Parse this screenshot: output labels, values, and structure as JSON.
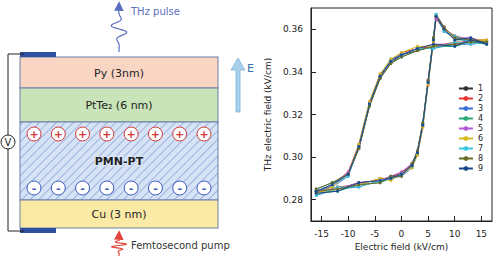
{
  "diagram": {
    "pulse_top": "THz pulse",
    "pulse_bottom": "Femtosecond pump",
    "field": "E",
    "source": "V",
    "layers": [
      "Py (3nm)",
      "PtTe₂ (6 nm)",
      "PMN-PT",
      "Cu (3 nm)"
    ],
    "charges": {
      "top": "+",
      "bottom": "-",
      "count": 8
    }
  },
  "chart_data": {
    "type": "line",
    "xlabel": "Electric field (kV/cm)",
    "ylabel": "THz electric field (kV/cm)",
    "x": [
      -16,
      -12,
      -8,
      -4,
      -2,
      0,
      2,
      3,
      4,
      5,
      6,
      6.5,
      8,
      10,
      13,
      16,
      13,
      10,
      6,
      3,
      0,
      -2,
      -4,
      -6,
      -8,
      -10,
      -13,
      -16
    ],
    "series": [
      {
        "name": "1",
        "color": "#333333",
        "values": [
          0.284,
          0.285,
          0.288,
          0.289,
          0.291,
          0.292,
          0.297,
          0.303,
          0.316,
          0.336,
          0.356,
          0.367,
          0.361,
          0.356,
          0.355,
          0.354,
          0.354,
          0.353,
          0.352,
          0.35,
          0.348,
          0.344,
          0.337,
          0.324,
          0.304,
          0.292,
          0.287,
          0.284
        ]
      },
      {
        "name": "2",
        "color": "#e8322c",
        "values": [
          0.283,
          0.286,
          0.287,
          0.29,
          0.29,
          0.293,
          0.296,
          0.301,
          0.314,
          0.334,
          0.354,
          0.365,
          0.36,
          0.357,
          0.355,
          0.355,
          0.354,
          0.354,
          0.352,
          0.351,
          0.349,
          0.345,
          0.339,
          0.326,
          0.306,
          0.293,
          0.287,
          0.283
        ]
      },
      {
        "name": "3",
        "color": "#3a6fd8",
        "values": [
          0.282,
          0.285,
          0.286,
          0.289,
          0.29,
          0.291,
          0.295,
          0.302,
          0.315,
          0.335,
          0.355,
          0.366,
          0.359,
          0.356,
          0.354,
          0.354,
          0.353,
          0.353,
          0.351,
          0.351,
          0.348,
          0.346,
          0.338,
          0.325,
          0.305,
          0.291,
          0.286,
          0.284
        ]
      },
      {
        "name": "4",
        "color": "#2aa876",
        "values": [
          0.283,
          0.284,
          0.287,
          0.288,
          0.29,
          0.292,
          0.296,
          0.302,
          0.316,
          0.335,
          0.356,
          0.366,
          0.36,
          0.355,
          0.355,
          0.353,
          0.354,
          0.352,
          0.352,
          0.35,
          0.347,
          0.344,
          0.338,
          0.324,
          0.305,
          0.292,
          0.288,
          0.285
        ]
      },
      {
        "name": "5",
        "color": "#b45ad2",
        "values": [
          0.284,
          0.285,
          0.288,
          0.289,
          0.291,
          0.293,
          0.297,
          0.303,
          0.315,
          0.336,
          0.355,
          0.365,
          0.361,
          0.356,
          0.356,
          0.354,
          0.355,
          0.353,
          0.353,
          0.351,
          0.348,
          0.345,
          0.337,
          0.325,
          0.304,
          0.293,
          0.287,
          0.284
        ]
      },
      {
        "name": "6",
        "color": "#d4b81e",
        "values": [
          0.283,
          0.285,
          0.287,
          0.29,
          0.289,
          0.292,
          0.295,
          0.301,
          0.314,
          0.334,
          0.354,
          0.366,
          0.36,
          0.356,
          0.355,
          0.355,
          0.354,
          0.353,
          0.352,
          0.352,
          0.349,
          0.346,
          0.339,
          0.326,
          0.306,
          0.292,
          0.286,
          0.283
        ]
      },
      {
        "name": "7",
        "color": "#3cc7e0",
        "values": [
          0.282,
          0.286,
          0.286,
          0.289,
          0.29,
          0.292,
          0.296,
          0.302,
          0.315,
          0.335,
          0.355,
          0.367,
          0.359,
          0.357,
          0.354,
          0.354,
          0.353,
          0.354,
          0.351,
          0.351,
          0.348,
          0.345,
          0.338,
          0.325,
          0.305,
          0.291,
          0.287,
          0.284
        ]
      },
      {
        "name": "8",
        "color": "#6b6b2a",
        "values": [
          0.284,
          0.285,
          0.287,
          0.288,
          0.291,
          0.291,
          0.297,
          0.303,
          0.316,
          0.336,
          0.356,
          0.366,
          0.361,
          0.356,
          0.355,
          0.354,
          0.354,
          0.353,
          0.352,
          0.35,
          0.347,
          0.344,
          0.337,
          0.324,
          0.304,
          0.292,
          0.288,
          0.285
        ]
      },
      {
        "name": "9",
        "color": "#1a4a8a",
        "values": [
          0.283,
          0.284,
          0.288,
          0.289,
          0.29,
          0.292,
          0.296,
          0.302,
          0.315,
          0.335,
          0.355,
          0.366,
          0.36,
          0.355,
          0.356,
          0.353,
          0.355,
          0.352,
          0.353,
          0.351,
          0.348,
          0.345,
          0.338,
          0.325,
          0.305,
          0.292,
          0.287,
          0.284
        ]
      }
    ],
    "xlim": [
      -17,
      17
    ],
    "xticks": [
      -15,
      -10,
      -5,
      0,
      5,
      10,
      15
    ],
    "ylim": [
      0.27,
      0.37
    ],
    "yticks": [
      0.28,
      {
        "value": 0.3,
        "label": "0.30"
      },
      0.32,
      0.34,
      0.36
    ],
    "marker": "circle",
    "legend": "right",
    "grid": false
  }
}
